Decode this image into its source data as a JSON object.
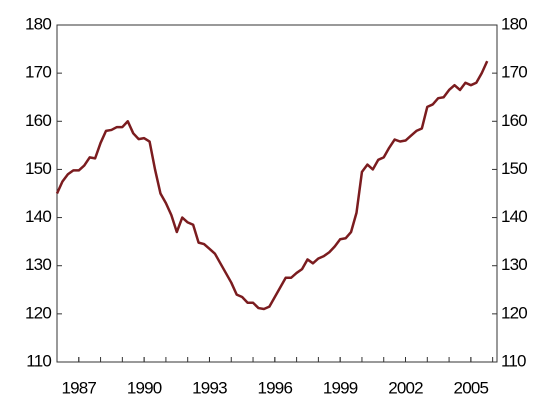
{
  "chart_data": {
    "type": "line",
    "x": [
      1986,
      1986.25,
      1986.5,
      1986.75,
      1987,
      1987.25,
      1987.5,
      1987.75,
      1988,
      1988.25,
      1988.5,
      1988.75,
      1989,
      1989.25,
      1989.5,
      1989.75,
      1990,
      1990.25,
      1990.5,
      1990.75,
      1991,
      1991.25,
      1991.5,
      1991.75,
      1992,
      1992.25,
      1992.5,
      1992.75,
      1993,
      1993.25,
      1993.5,
      1993.75,
      1994,
      1994.25,
      1994.5,
      1994.75,
      1995,
      1995.25,
      1995.5,
      1995.75,
      1996,
      1996.25,
      1996.5,
      1996.75,
      1997,
      1997.25,
      1997.5,
      1997.75,
      1998,
      1998.25,
      1998.5,
      1998.75,
      1999,
      1999.25,
      1999.5,
      1999.75,
      2000,
      2000.25,
      2000.5,
      2000.75,
      2001,
      2001.25,
      2001.5,
      2001.75,
      2002,
      2002.25,
      2002.5,
      2002.75,
      2003,
      2003.25,
      2003.5,
      2003.75,
      2004,
      2004.25,
      2004.5,
      2004.75,
      2005,
      2005.25,
      2005.5,
      2005.75
    ],
    "series": [
      {
        "color": "#7b1c1f",
        "values": [
          145,
          147.5,
          149,
          149.8,
          149.8,
          150.8,
          152.5,
          152.3,
          155.5,
          158,
          158.2,
          158.8,
          158.8,
          160,
          157.5,
          156.3,
          156.5,
          155.8,
          150,
          145,
          143,
          140.5,
          137,
          140,
          139,
          138.5,
          134.8,
          134.5,
          133.5,
          132.5,
          130.5,
          128.5,
          126.5,
          124,
          123.5,
          122.3,
          122.3,
          121.2,
          121,
          121.5,
          123.5,
          125.5,
          127.5,
          127.5,
          128.5,
          129.3,
          131.3,
          130.5,
          131.5,
          132,
          132.8,
          134,
          135.5,
          135.7,
          137,
          141,
          149.5,
          151,
          150,
          152,
          152.5,
          154.5,
          156.2,
          155.8,
          156,
          157,
          158,
          158.5,
          163,
          163.5,
          164.8,
          165,
          166.5,
          167.5,
          166.5,
          168,
          167.5,
          168,
          170,
          172.5
        ]
      }
    ],
    "xlim": [
      1986,
      2006.2
    ],
    "xticks": [
      1987,
      1990,
      1993,
      1996,
      1999,
      2002,
      2005
    ],
    "xminorticks": [
      1987,
      1988,
      1989,
      1990,
      1991,
      1992,
      1993,
      1994,
      1995,
      1996,
      1997,
      1998,
      1999,
      2000,
      2001,
      2002,
      2003,
      2004,
      2005,
      2006
    ],
    "ylim": [
      110,
      180
    ],
    "yticks": [
      110,
      120,
      130,
      140,
      150,
      160,
      170,
      180
    ],
    "y2lim": [
      110,
      180
    ],
    "y2ticks": [
      110,
      120,
      130,
      140,
      150,
      160,
      170,
      180
    ]
  }
}
